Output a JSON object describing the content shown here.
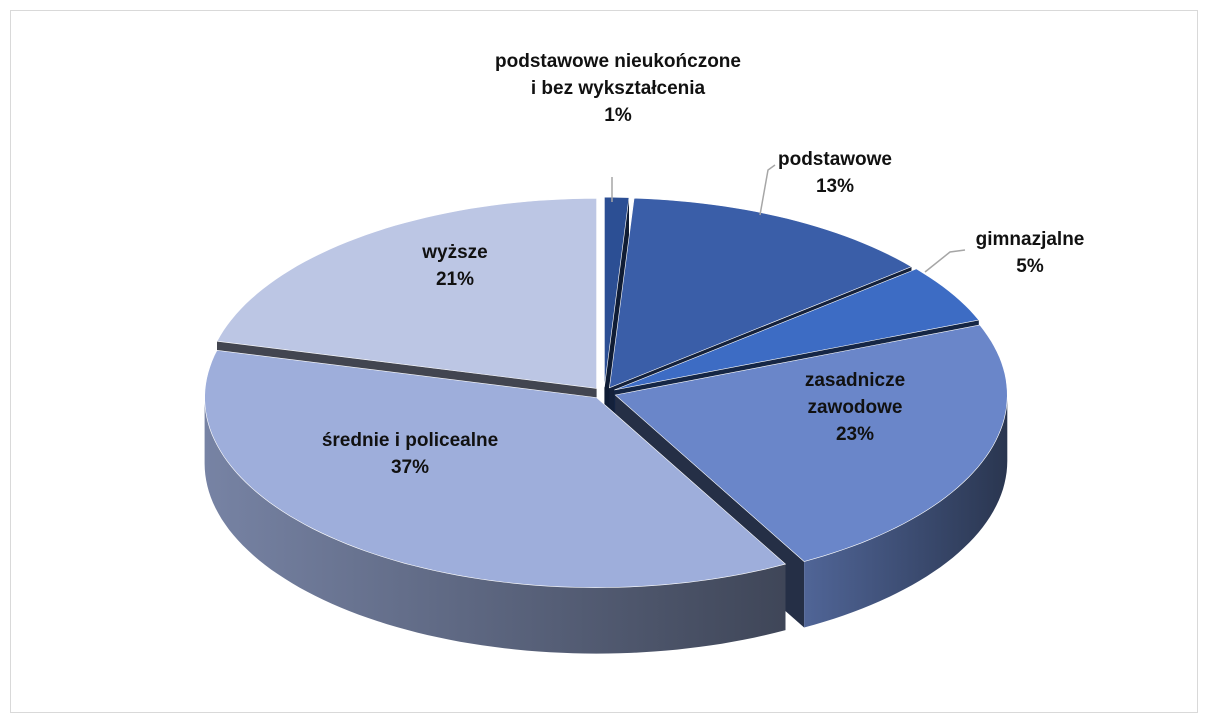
{
  "chart_data": {
    "type": "pie3d",
    "categories": [
      "podstawowe nieukończone i bez wykształcenia",
      "podstawowe",
      "gimnazjalne",
      "zasadnicze zawodowe",
      "średnie i policealne",
      "wyższe"
    ],
    "values": [
      1,
      13,
      5,
      23,
      37,
      21
    ],
    "value_labels": [
      "1%",
      "13%",
      "5%",
      "23%",
      "37%",
      "21%"
    ],
    "colors": [
      "#2c4f94",
      "#3a5ea8",
      "#3d6cc4",
      "#6a86c9",
      "#9eaedb",
      "#bcc6e4"
    ]
  }
}
